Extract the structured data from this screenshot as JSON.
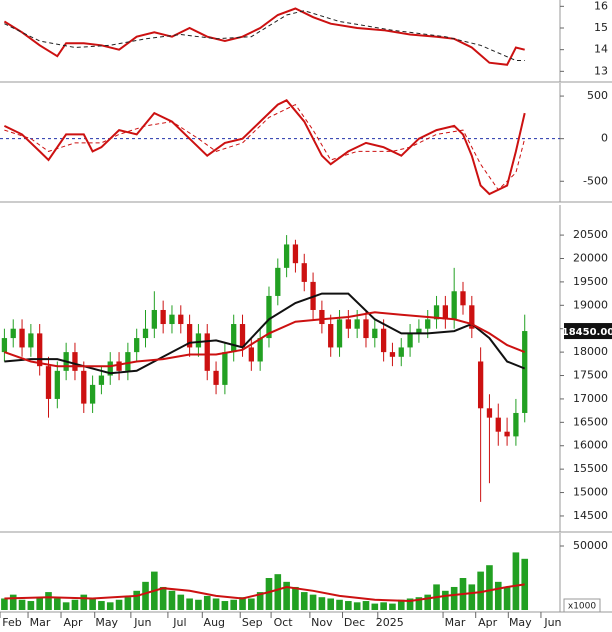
{
  "chart_data": [
    {
      "type": "line",
      "xlim": [
        -0.5,
        63
      ],
      "ylim": [
        12.6,
        16.2
      ],
      "yticks": [
        13,
        14,
        15,
        16
      ],
      "series": [
        {
          "color": "#cc1111",
          "style": "solid",
          "x": [
            0,
            2,
            4,
            6,
            7,
            9,
            11,
            13,
            15,
            17,
            19,
            21,
            23,
            25,
            27,
            29,
            31,
            33,
            35,
            37,
            40,
            43,
            46,
            49,
            51,
            53,
            55,
            57,
            58,
            59
          ],
          "values": [
            15.3,
            14.8,
            14.2,
            13.7,
            14.3,
            14.3,
            14.2,
            14.0,
            14.6,
            14.8,
            14.6,
            15.0,
            14.6,
            14.4,
            14.6,
            15.0,
            15.6,
            15.9,
            15.5,
            15.2,
            15.0,
            14.9,
            14.7,
            14.6,
            14.5,
            14.1,
            13.4,
            13.3,
            14.1,
            14.0
          ]
        },
        {
          "color": "#222222",
          "style": "dashed",
          "x": [
            0,
            4,
            8,
            12,
            16,
            20,
            24,
            28,
            32,
            34,
            38,
            44,
            50,
            54,
            58,
            59
          ],
          "values": [
            15.2,
            14.4,
            14.1,
            14.2,
            14.5,
            14.7,
            14.5,
            14.6,
            15.6,
            15.8,
            15.3,
            14.9,
            14.6,
            14.2,
            13.5,
            13.5
          ]
        }
      ]
    },
    {
      "type": "line",
      "xlim": [
        -0.5,
        63
      ],
      "ylim": [
        -720,
        630
      ],
      "yticks": [
        500,
        0,
        -500
      ],
      "zero_line": {
        "value": 0,
        "color": "#2233aa"
      },
      "series": [
        {
          "color": "#cc1111",
          "style": "solid",
          "x": [
            0,
            2,
            4,
            5,
            7,
            9,
            10,
            11,
            13,
            15,
            17,
            19,
            21,
            23,
            25,
            27,
            29,
            31,
            32,
            34,
            36,
            37,
            39,
            41,
            43,
            45,
            47,
            49,
            51,
            52,
            53,
            54,
            55,
            57,
            58,
            59
          ],
          "values": [
            150,
            50,
            -150,
            -250,
            50,
            50,
            -150,
            -100,
            100,
            50,
            300,
            200,
            0,
            -200,
            -50,
            0,
            200,
            400,
            450,
            200,
            -200,
            -300,
            -150,
            -50,
            -100,
            -200,
            0,
            100,
            150,
            50,
            -200,
            -550,
            -650,
            -550,
            -150,
            300
          ]
        },
        {
          "color": "#cc1111",
          "style": "dashed",
          "x": [
            0,
            3,
            5,
            8,
            11,
            13,
            16,
            19,
            22,
            24,
            27,
            30,
            33,
            35,
            37,
            40,
            44,
            46,
            49,
            52,
            54,
            56,
            58,
            59
          ],
          "values": [
            100,
            0,
            -150,
            -50,
            -50,
            50,
            150,
            200,
            0,
            -150,
            -50,
            250,
            400,
            100,
            -250,
            -150,
            -150,
            -100,
            50,
            100,
            -300,
            -600,
            -400,
            0
          ]
        }
      ]
    },
    {
      "type": "candlestick",
      "xlim": [
        -0.5,
        63
      ],
      "ylim": [
        14200,
        21100
      ],
      "yticks": [
        20500,
        20000,
        19500,
        19000,
        18500,
        18000,
        17500,
        17000,
        16500,
        16000,
        15500,
        15000,
        14500
      ],
      "up_color": "#22a022",
      "down_color": "#cc1111",
      "x": [
        0,
        1,
        2,
        3,
        4,
        5,
        6,
        7,
        8,
        9,
        10,
        11,
        12,
        13,
        14,
        15,
        16,
        17,
        18,
        19,
        20,
        21,
        22,
        23,
        24,
        25,
        26,
        27,
        28,
        29,
        30,
        31,
        32,
        33,
        34,
        35,
        36,
        37,
        38,
        39,
        40,
        41,
        42,
        43,
        44,
        45,
        46,
        47,
        48,
        49,
        50,
        51,
        52,
        53,
        54,
        55,
        56,
        57,
        58,
        59
      ],
      "open": [
        18000,
        18300,
        18500,
        18100,
        18400,
        17700,
        17000,
        17600,
        18000,
        17600,
        16900,
        17300,
        17500,
        17800,
        17600,
        18000,
        18300,
        18500,
        18900,
        18600,
        18800,
        18600,
        18100,
        18400,
        17600,
        17300,
        18000,
        18600,
        18100,
        17800,
        18300,
        19200,
        19800,
        20300,
        19900,
        19500,
        18900,
        18600,
        18100,
        18700,
        18500,
        18700,
        18300,
        18500,
        18000,
        17900,
        18100,
        18400,
        18500,
        18700,
        19000,
        18700,
        19300,
        19000,
        17800,
        16800,
        16600,
        16300,
        16200,
        16700
      ],
      "high": [
        18500,
        18700,
        18700,
        18600,
        18600,
        17900,
        17800,
        18200,
        18200,
        17800,
        17500,
        17700,
        18000,
        18000,
        18200,
        18500,
        18900,
        19300,
        19100,
        19000,
        19000,
        18800,
        18600,
        18600,
        17800,
        18200,
        18800,
        18800,
        18300,
        18500,
        19400,
        20000,
        20500,
        20400,
        20100,
        19700,
        19100,
        18800,
        18900,
        18900,
        18900,
        18900,
        18700,
        18700,
        18200,
        18300,
        18600,
        18700,
        18900,
        19200,
        19200,
        19800,
        19500,
        19200,
        18100,
        17100,
        16900,
        16600,
        17000,
        18800
      ],
      "low": [
        17800,
        18100,
        17900,
        17900,
        17500,
        16600,
        16800,
        17400,
        17400,
        16700,
        16700,
        17100,
        17300,
        17400,
        17400,
        17800,
        18100,
        18300,
        18400,
        18400,
        18400,
        17900,
        17900,
        17400,
        17100,
        17100,
        17800,
        17900,
        17600,
        17600,
        18100,
        19000,
        19600,
        19700,
        19300,
        18700,
        18400,
        17900,
        17900,
        18300,
        18300,
        18100,
        18100,
        17800,
        17700,
        17700,
        17900,
        18200,
        18300,
        18500,
        18500,
        18500,
        18800,
        18300,
        14800,
        15200,
        16000,
        16000,
        16000,
        16500
      ],
      "close": [
        18300,
        18500,
        18100,
        18400,
        17700,
        17000,
        17600,
        18000,
        17600,
        16900,
        17300,
        17500,
        17800,
        17600,
        18000,
        18300,
        18500,
        18900,
        18600,
        18800,
        18600,
        18100,
        18400,
        17600,
        17300,
        18000,
        18600,
        18100,
        17800,
        18300,
        19200,
        19800,
        20300,
        19900,
        19500,
        18900,
        18600,
        18100,
        18700,
        18500,
        18700,
        18300,
        18500,
        18000,
        17900,
        18100,
        18400,
        18500,
        18700,
        19000,
        18700,
        19300,
        19000,
        18500,
        16800,
        16600,
        16300,
        16200,
        16700,
        18450
      ],
      "price_tag": {
        "value": 18450,
        "label": "18450.00"
      },
      "series": [
        {
          "color": "#111111",
          "style": "solid",
          "x": [
            0,
            3,
            6,
            9,
            12,
            15,
            18,
            21,
            24,
            27,
            30,
            33,
            36,
            39,
            42,
            45,
            48,
            51,
            53,
            55,
            57,
            59
          ],
          "values": [
            17800,
            17850,
            17850,
            17700,
            17550,
            17600,
            17900,
            18200,
            18250,
            18100,
            18700,
            19050,
            19250,
            19250,
            18700,
            18400,
            18400,
            18450,
            18600,
            18300,
            17800,
            17650
          ]
        },
        {
          "color": "#cc1111",
          "style": "solid",
          "x": [
            0,
            3,
            6,
            9,
            12,
            15,
            18,
            21,
            24,
            27,
            30,
            33,
            36,
            39,
            42,
            45,
            48,
            51,
            53,
            55,
            57,
            59
          ],
          "values": [
            18000,
            17800,
            17700,
            17700,
            17700,
            17800,
            17850,
            17950,
            17950,
            18050,
            18400,
            18650,
            18700,
            18750,
            18850,
            18800,
            18750,
            18700,
            18600,
            18400,
            18150,
            18000
          ]
        }
      ]
    },
    {
      "type": "bar",
      "xlim": [
        -0.5,
        63
      ],
      "ylim": [
        0,
        58600
      ],
      "yticks": [
        50000
      ],
      "color": "#22a022",
      "unit_label": "x1000",
      "x": [
        0,
        1,
        2,
        3,
        4,
        5,
        6,
        7,
        8,
        9,
        10,
        11,
        12,
        13,
        14,
        15,
        16,
        17,
        18,
        19,
        20,
        21,
        22,
        23,
        24,
        25,
        26,
        27,
        28,
        29,
        30,
        31,
        32,
        33,
        34,
        35,
        36,
        37,
        38,
        39,
        40,
        41,
        42,
        43,
        44,
        45,
        46,
        47,
        48,
        49,
        50,
        51,
        52,
        53,
        54,
        55,
        56,
        57,
        58,
        59
      ],
      "values": [
        9000,
        12000,
        8000,
        7000,
        10000,
        14000,
        9000,
        6000,
        8000,
        12000,
        9000,
        7000,
        6000,
        8000,
        10000,
        15000,
        22000,
        30000,
        18000,
        15000,
        12000,
        9000,
        8000,
        11000,
        9000,
        7000,
        8000,
        10000,
        9000,
        14000,
        25000,
        28000,
        22000,
        18000,
        14000,
        12000,
        10000,
        9000,
        8000,
        7000,
        6000,
        7000,
        5000,
        6000,
        5000,
        8000,
        9000,
        10000,
        12000,
        20000,
        15000,
        18000,
        25000,
        20000,
        30000,
        35000,
        22000,
        18000,
        45000,
        40000
      ],
      "series": [
        {
          "color": "#cc1111",
          "style": "solid",
          "x": [
            0,
            5,
            10,
            15,
            18,
            21,
            24,
            27,
            30,
            32,
            35,
            38,
            42,
            46,
            50,
            54,
            57,
            59
          ],
          "values": [
            9000,
            10000,
            9000,
            11000,
            17000,
            15000,
            11000,
            9000,
            14000,
            18000,
            15000,
            11000,
            8000,
            7000,
            11000,
            14000,
            18000,
            20000
          ]
        }
      ],
      "xticks": [
        {
          "value": 0.86,
          "label": "Feb"
        },
        {
          "value": 4.04,
          "label": "Mar"
        },
        {
          "value": 7.78,
          "label": "Apr"
        },
        {
          "value": 11.6,
          "label": "May"
        },
        {
          "value": 15.7,
          "label": "Jun"
        },
        {
          "value": 19.9,
          "label": "Jul"
        },
        {
          "value": 23.8,
          "label": "Aug"
        },
        {
          "value": 28.1,
          "label": "Sep"
        },
        {
          "value": 31.6,
          "label": "Oct"
        },
        {
          "value": 36,
          "label": "Nov"
        },
        {
          "value": 39.7,
          "label": "Dec"
        },
        {
          "value": 43.7,
          "label": "2025"
        },
        {
          "value": 51.1,
          "label": "Mar"
        },
        {
          "value": 54.8,
          "label": "Apr"
        },
        {
          "value": 58.5,
          "label": "May"
        },
        {
          "value": 62.2,
          "label": "Jun"
        }
      ]
    }
  ]
}
